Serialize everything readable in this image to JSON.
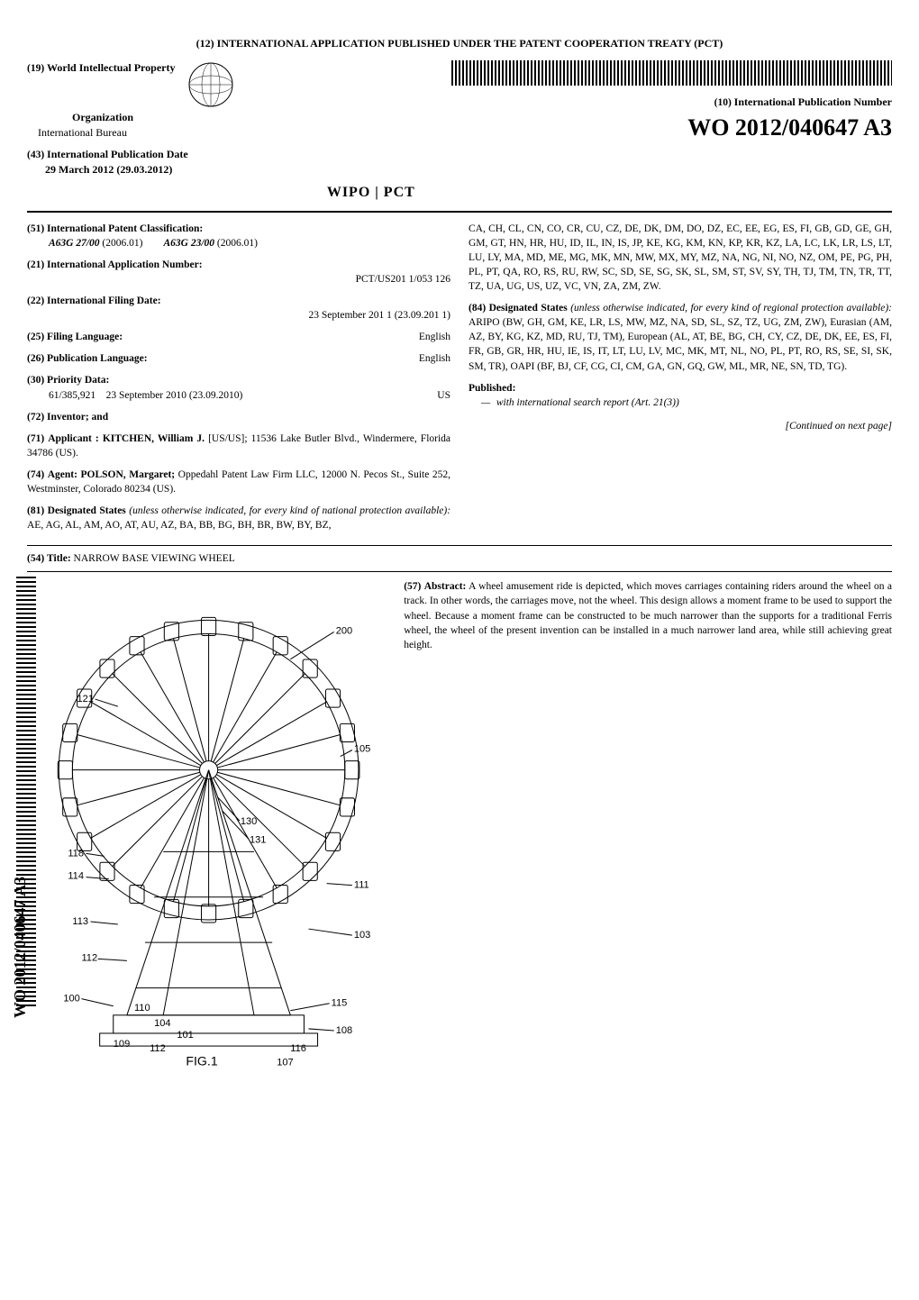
{
  "header": {
    "treaty_title": "(12) INTERNATIONAL APPLICATION PUBLISHED UNDER THE PATENT COOPERATION TREATY (PCT)",
    "org_code": "(19)",
    "org_label": "World Intellectual Property",
    "org_name": "Organization",
    "bureau": "International Bureau",
    "pub_date_code": "(43)",
    "pub_date_label": "International Publication Date",
    "pub_date": "29 March 2012 (29.03.2012)",
    "wipo_text": "WIPO | PCT",
    "pub_num_code": "(10)",
    "pub_num_label": "International Publication Number",
    "pub_num": "WO 2012/040647 A3"
  },
  "fields": {
    "ipc": {
      "code": "(51)",
      "label": "International Patent Classification:",
      "codes": [
        {
          "cls": "A63G 27/00",
          "ver": "(2006.01)"
        },
        {
          "cls": "A63G 23/00",
          "ver": "(2006.01)"
        }
      ]
    },
    "app_num": {
      "code": "(21)",
      "label": "International Application Number:",
      "value": "PCT/US201 1/053 126"
    },
    "filing_date": {
      "code": "(22)",
      "label": "International Filing Date:",
      "value": "23 September 201 1 (23.09.201 1)"
    },
    "filing_lang": {
      "code": "(25)",
      "label": "Filing Language:",
      "value": "English"
    },
    "pub_lang": {
      "code": "(26)",
      "label": "Publication Language:",
      "value": "English"
    },
    "priority": {
      "code": "(30)",
      "label": "Priority Data:",
      "num": "61/385,921",
      "date": "23 September 2010 (23.09.2010)",
      "country": "US"
    },
    "inventor": {
      "code": "(72)",
      "label": "Inventor; and"
    },
    "applicant": {
      "code": "(71)",
      "label": "Applicant :",
      "name": "KITCHEN, William J.",
      "nat": "[US/US];",
      "addr": "11536 Lake Butler Blvd., Windermere, Florida 34786 (US)."
    },
    "agent": {
      "code": "(74)",
      "label": "Agent:",
      "name": "POLSON, Margaret;",
      "firm": "Oppedahl Patent Law Firm LLC, 12000 N. Pecos St., Suite 252, Westminster, Colorado 80234 (US)."
    },
    "desig_national": {
      "code": "(81)",
      "label": "Designated States",
      "note": "(unless otherwise indicated, for every kind of national protection available):",
      "states": "AE, AG, AL, AM, AO, AT, AU, AZ, BA, BB, BG, BH, BR, BW, BY, BZ, CA, CH, CL, CN, CO, CR, CU, CZ, DE, DK, DM, DO, DZ, EC, EE, EG, ES, FI, GB, GD, GE, GH, GM, GT, HN, HR, HU, ID, IL, IN, IS, JP, KE, KG, KM, KN, KP, KR, KZ, LA, LC, LK, LR, LS, LT, LU, LY, MA, MD, ME, MG, MK, MN, MW, MX, MY, MZ, NA, NG, NI, NO, NZ, OM, PE, PG, PH, PL, PT, QA, RO, RS, RU, RW, SC, SD, SE, SG, SK, SL, SM, ST, SV, SY, TH, TJ, TM, TN, TR, TT, TZ, UA, UG, US, UZ, VC, VN, ZA, ZM, ZW."
    },
    "desig_regional": {
      "code": "(84)",
      "label": "Designated States",
      "note": "(unless otherwise indicated, for every kind of regional protection available):",
      "states": "ARIPO (BW, GH, GM, KE, LR, LS, MW, MZ, NA, SD, SL, SZ, TZ, UG, ZM, ZW), Eurasian (AM, AZ, BY, KG, KZ, MD, RU, TJ, TM), European (AL, AT, BE, BG, CH, CY, CZ, DE, DK, EE, ES, FI, FR, GB, GR, HR, HU, IE, IS, IT, LT, LU, LV, MC, MK, MT, NL, NO, PL, PT, RO, RS, SE, SI, SK, SM, TR), OAPI (BF, BJ, CF, CG, CI, CM, GA, GN, GQ, GW, ML, MR, NE, SN, TD, TG)."
    },
    "published": {
      "label": "Published:",
      "item": "with international search report (Art. 21(3))"
    }
  },
  "continued": "[Continued on next page]",
  "title": {
    "code": "(54)",
    "label": "Title:",
    "text": "NARROW BASE VIEWING WHEEL"
  },
  "abstract": {
    "code": "(57)",
    "label": "Abstract:",
    "text": "A wheel amusement ride is depicted, which moves carriages containing riders around the wheel on a track. In other words, the carriages move, not the wheel. This design allows a moment frame to be used to support the wheel. Because a moment frame can be constructed to be much narrower than the supports for a traditional Ferris wheel, the wheel of the present invention can be installed in a much narrower land area, while still achieving great height."
  },
  "figure": {
    "caption": "FIG.1",
    "ref_numerals": [
      "100",
      "101",
      "103",
      "104",
      "105",
      "107",
      "108",
      "109",
      "110",
      "111",
      "112",
      "113",
      "114",
      "115",
      "116",
      "118",
      "121",
      "130",
      "131",
      "200"
    ],
    "colors": {
      "stroke": "#000000",
      "fill": "#ffffff"
    },
    "stroke_width": 1
  },
  "side": {
    "pubnum_vertical": "WO 2012/040647 A3"
  }
}
